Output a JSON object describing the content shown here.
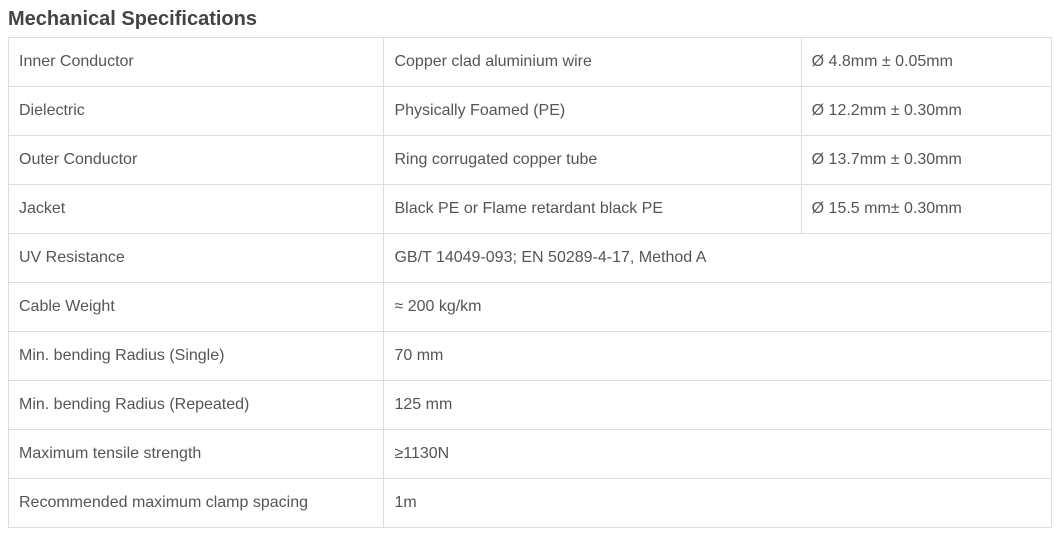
{
  "title": "Mechanical Specifications",
  "title_color": "#444444",
  "border_color": "#dddddd",
  "text_color": "#555555",
  "background_color": "#ffffff",
  "font_family": "Arial, Helvetica, sans-serif",
  "title_fontsize": 20,
  "cell_fontsize": 16,
  "columns": [
    {
      "key": "label",
      "width_pct": 36
    },
    {
      "key": "value",
      "width_pct": 40
    },
    {
      "key": "dimension",
      "width_pct": 24
    }
  ],
  "rows": [
    {
      "label": "Inner Conductor",
      "value": "Copper clad aluminium wire",
      "dimension": "Ø 4.8mm ± 0.05mm"
    },
    {
      "label": "Dielectric",
      "value": "Physically Foamed (PE)",
      "dimension": "Ø 12.2mm ± 0.30mm"
    },
    {
      "label": "Outer Conductor",
      "value": "Ring corrugated copper tube",
      "dimension": "Ø 13.7mm ± 0.30mm"
    },
    {
      "label": "Jacket",
      "value": "Black PE or Flame retardant black PE",
      "dimension": "Ø 15.5 mm± 0.30mm"
    },
    {
      "label": "UV Resistance",
      "value": "GB/T 14049-093; EN 50289-4-17, Method A",
      "dimension": ""
    },
    {
      "label": "Cable Weight",
      "value": "≈ 200 kg/km",
      "dimension": ""
    },
    {
      "label": "Min. bending Radius (Single)",
      "value": "70 mm",
      "dimension": ""
    },
    {
      "label": "Min. bending Radius (Repeated)",
      "value": "125 mm",
      "dimension": ""
    },
    {
      "label": "Maximum tensile strength",
      "value": "≥1130N",
      "dimension": ""
    },
    {
      "label": "Recommended maximum clamp spacing",
      "value": "1m",
      "dimension": ""
    }
  ]
}
